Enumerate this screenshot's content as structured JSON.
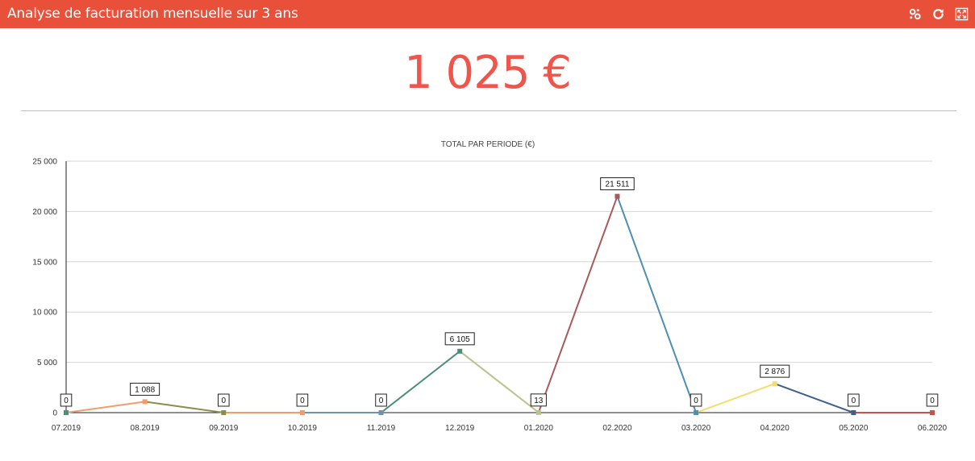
{
  "header": {
    "title": "Analyse de facturation mensuelle sur 3 ans",
    "icons": [
      "settings-icon",
      "refresh-icon",
      "fullscreen-icon"
    ],
    "color": "#e8503a"
  },
  "kpi": {
    "value": "1 025 €",
    "color": "#f0554b"
  },
  "chart_data": {
    "type": "line",
    "title": "TOTAL PAR PERIODE (€)",
    "xlabel": "",
    "ylabel": "",
    "categories": [
      "07.2019",
      "08.2019",
      "09.2019",
      "10.2019",
      "11.2019",
      "12.2019",
      "01.2020",
      "02.2020",
      "03.2020",
      "04.2020",
      "05.2020",
      "06.2020"
    ],
    "values": [
      0,
      1088,
      0,
      0,
      0,
      6105,
      13,
      21511,
      0,
      2876,
      0,
      0
    ],
    "data_labels": [
      "0",
      "1 088",
      "0",
      "0",
      "0",
      "6 105",
      "13",
      "21 511",
      "0",
      "2 876",
      "0",
      "0"
    ],
    "ylim": [
      0,
      25000
    ],
    "yticks": [
      0,
      5000,
      10000,
      15000,
      20000,
      25000
    ],
    "ytick_labels": [
      "0",
      "5 000",
      "10 000",
      "15 000",
      "20 000",
      "25 000"
    ],
    "grid": true,
    "segment_colors": [
      "#f39c6b",
      "#8a8f4a",
      "#f39c6b",
      "#6f93a8",
      "#4f8d7a",
      "#b8c48e",
      "#a85a5a",
      "#4f8fb0",
      "#f5dc6e",
      "#3f5f8a",
      "#c9504c"
    ],
    "point_colors": [
      "#4f8d7a",
      "#f39c6b",
      "#8a8f4a",
      "#f39c6b",
      "#6f93a8",
      "#4f8d7a",
      "#b8c48e",
      "#a85a5a",
      "#4f8fb0",
      "#f5dc6e",
      "#3f5f8a",
      "#c9504c"
    ]
  }
}
